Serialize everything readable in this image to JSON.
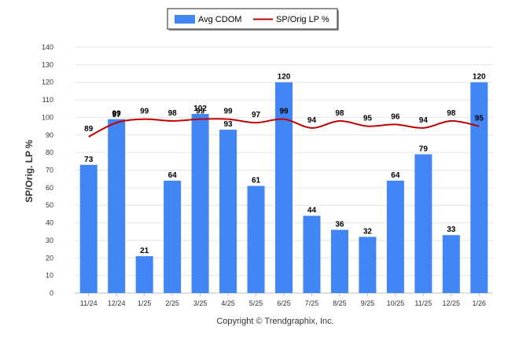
{
  "chart_data": {
    "type": "bar",
    "categories": [
      "11/24",
      "12/24",
      "1/25",
      "2/25",
      "3/25",
      "4/25",
      "5/25",
      "6/25",
      "7/25",
      "8/25",
      "9/25",
      "10/25",
      "11/25",
      "12/25",
      "1/26"
    ],
    "series": [
      {
        "name": "Avg CDOM",
        "kind": "bar",
        "color": "#4285f4",
        "values": [
          73,
          99,
          21,
          64,
          102,
          93,
          61,
          120,
          44,
          36,
          32,
          64,
          79,
          33,
          120
        ]
      },
      {
        "name": "SP/Orig LP %",
        "kind": "line",
        "color": "#c00000",
        "values": [
          89,
          97,
          99,
          98,
          99,
          99,
          97,
          99,
          94,
          98,
          95,
          96,
          94,
          98,
          95
        ]
      }
    ],
    "ylabel": "SP/Orig. LP %",
    "ylim": [
      0,
      140
    ],
    "yticks": [
      0,
      10,
      20,
      30,
      40,
      50,
      60,
      70,
      80,
      90,
      100,
      110,
      120,
      130,
      140
    ],
    "grid": true,
    "legend_position": "top-center"
  },
  "footer": {
    "copyright": "Copyright © Trendgraphix, Inc."
  }
}
